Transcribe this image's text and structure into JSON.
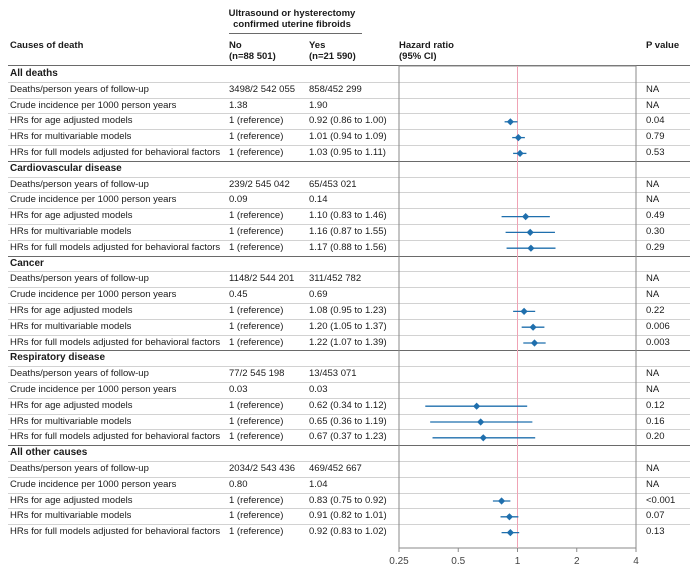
{
  "header": {
    "col_causes": "Causes of death",
    "group_label_line1": "Ultrasound or hysterectomy",
    "group_label_line2": "confirmed uterine fibroids",
    "no_label": "No",
    "no_n": "(n=88 501)",
    "yes_label": "Yes",
    "yes_n": "(n=21 590)",
    "hr_label": "Hazard ratio",
    "hr_ci": "(95% CI)",
    "pval_label": "P value"
  },
  "sections": [
    {
      "title": "All deaths",
      "rows": [
        {
          "label": "Deaths/person years of follow-up",
          "no": "3498/2 542 055",
          "yes": "858/452 299",
          "p": "NA"
        },
        {
          "label": "Crude incidence per 1000 person years",
          "no": "1.38",
          "yes": "1.90",
          "p": "NA"
        },
        {
          "label": "HRs for age adjusted models",
          "no": "1 (reference)",
          "yes": "0.92 (0.86 to 1.00)",
          "p": "0.04",
          "hr": 0.92,
          "lo": 0.86,
          "hi": 1.0
        },
        {
          "label": "HRs for multivariable models",
          "no": "1 (reference)",
          "yes": "1.01 (0.94 to 1.09)",
          "p": "0.79",
          "hr": 1.01,
          "lo": 0.94,
          "hi": 1.09
        },
        {
          "label": "HRs for full models adjusted for behavioral factors",
          "no": "1 (reference)",
          "yes": "1.03 (0.95 to 1.11)",
          "p": "0.53",
          "hr": 1.03,
          "lo": 0.95,
          "hi": 1.11
        }
      ]
    },
    {
      "title": "Cardiovascular disease",
      "rows": [
        {
          "label": "Deaths/person years of follow-up",
          "no": "239/2 545 042",
          "yes": "65/453 021",
          "p": "NA"
        },
        {
          "label": "Crude incidence per 1000 person years",
          "no": "0.09",
          "yes": "0.14",
          "p": "NA"
        },
        {
          "label": "HRs for age adjusted models",
          "no": "1 (reference)",
          "yes": "1.10 (0.83 to 1.46)",
          "p": "0.49",
          "hr": 1.1,
          "lo": 0.83,
          "hi": 1.46
        },
        {
          "label": "HRs for multivariable models",
          "no": "1 (reference)",
          "yes": "1.16 (0.87 to 1.55)",
          "p": "0.30",
          "hr": 1.16,
          "lo": 0.87,
          "hi": 1.55
        },
        {
          "label": "HRs for full models adjusted for behavioral factors",
          "no": "1 (reference)",
          "yes": "1.17 (0.88 to 1.56)",
          "p": "0.29",
          "hr": 1.17,
          "lo": 0.88,
          "hi": 1.56
        }
      ]
    },
    {
      "title": "Cancer",
      "rows": [
        {
          "label": "Deaths/person years of follow-up",
          "no": "1148/2 544 201",
          "yes": "311/452 782",
          "p": "NA"
        },
        {
          "label": "Crude incidence per 1000 person years",
          "no": "0.45",
          "yes": "0.69",
          "p": "NA"
        },
        {
          "label": "HRs for age adjusted models",
          "no": "1 (reference)",
          "yes": "1.08 (0.95 to 1.23)",
          "p": "0.22",
          "hr": 1.08,
          "lo": 0.95,
          "hi": 1.23
        },
        {
          "label": "HRs for multivariable models",
          "no": "1 (reference)",
          "yes": "1.20 (1.05 to 1.37)",
          "p": "0.006",
          "hr": 1.2,
          "lo": 1.05,
          "hi": 1.37
        },
        {
          "label": "HRs for full models adjusted for behavioral factors",
          "no": "1 (reference)",
          "yes": "1.22 (1.07 to 1.39)",
          "p": "0.003",
          "hr": 1.22,
          "lo": 1.07,
          "hi": 1.39
        }
      ]
    },
    {
      "title": "Respiratory disease",
      "rows": [
        {
          "label": "Deaths/person years of follow-up",
          "no": "77/2 545 198",
          "yes": "13/453 071",
          "p": "NA"
        },
        {
          "label": "Crude incidence per 1000 person years",
          "no": "0.03",
          "yes": "0.03",
          "p": "NA"
        },
        {
          "label": "HRs for age adjusted models",
          "no": "1 (reference)",
          "yes": "0.62 (0.34 to 1.12)",
          "p": "0.12",
          "hr": 0.62,
          "lo": 0.34,
          "hi": 1.12
        },
        {
          "label": "HRs for multivariable models",
          "no": "1 (reference)",
          "yes": "0.65 (0.36 to 1.19)",
          "p": "0.16",
          "hr": 0.65,
          "lo": 0.36,
          "hi": 1.19
        },
        {
          "label": "HRs for full models adjusted for behavioral factors",
          "no": "1 (reference)",
          "yes": "0.67 (0.37 to 1.23)",
          "p": "0.20",
          "hr": 0.67,
          "lo": 0.37,
          "hi": 1.23
        }
      ]
    },
    {
      "title": "All other causes",
      "rows": [
        {
          "label": "Deaths/person years of follow-up",
          "no": "2034/2 543 436",
          "yes": "469/452 667",
          "p": "NA"
        },
        {
          "label": "Crude incidence per 1000 person years",
          "no": "0.80",
          "yes": "1.04",
          "p": "NA"
        },
        {
          "label": "HRs for age adjusted models",
          "no": "1 (reference)",
          "yes": "0.83 (0.75 to 0.92)",
          "p": "<0.001",
          "hr": 0.83,
          "lo": 0.75,
          "hi": 0.92
        },
        {
          "label": "HRs for multivariable models",
          "no": "1 (reference)",
          "yes": "0.91 (0.82 to 1.01)",
          "p": "0.07",
          "hr": 0.91,
          "lo": 0.82,
          "hi": 1.01
        },
        {
          "label": "HRs for full models adjusted for behavioral factors",
          "no": "1 (reference)",
          "yes": "0.92 (0.83 to 1.02)",
          "p": "0.13",
          "hr": 0.92,
          "lo": 0.83,
          "hi": 1.02
        }
      ]
    }
  ],
  "chart_data": {
    "type": "scatter",
    "subtype": "forest",
    "xscale": "log",
    "xlim": [
      0.25,
      4
    ],
    "xticks": [
      0.25,
      0.5,
      1,
      2,
      4
    ],
    "xtick_labels": [
      "0.25",
      "0.5",
      "1",
      "2",
      "4"
    ],
    "reference_line": 1,
    "grid": false,
    "colors": {
      "marker": "#1f6fad",
      "reference": "#f0a3b5",
      "frame": "#8a8a8a"
    }
  }
}
